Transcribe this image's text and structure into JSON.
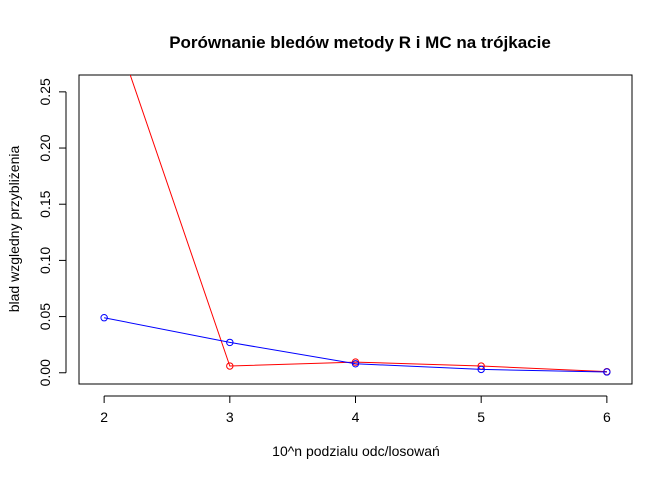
{
  "chart_data": {
    "type": "line",
    "title": "Porównanie bledów metody R i MC na trójkacie",
    "xlabel": "10^n podzialu odc/losowań",
    "ylabel": "blad wzgledny przybliżenia",
    "x": [
      2,
      3,
      4,
      5,
      6
    ],
    "x_ticks": [
      "2",
      "3",
      "4",
      "5",
      "6"
    ],
    "y_ticks": [
      "0.00",
      "0.05",
      "0.10",
      "0.15",
      "0.20",
      "0.25"
    ],
    "xlim": [
      1.8,
      6.2
    ],
    "ylim": [
      -0.01,
      0.265
    ],
    "grid": false,
    "legend": "none",
    "series": [
      {
        "color": "#ff0000",
        "values": [
          0.333,
          0.006,
          0.0095,
          0.006,
          0.001
        ]
      },
      {
        "color": "#0000ff",
        "values": [
          0.049,
          0.027,
          0.008,
          0.003,
          0.0007
        ]
      }
    ]
  }
}
